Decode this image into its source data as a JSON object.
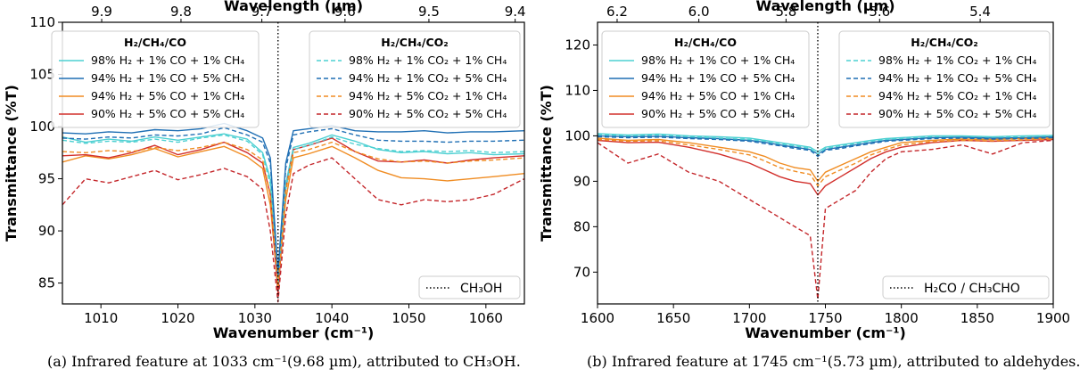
{
  "chart_data": [
    {
      "type": "line",
      "panel": "a",
      "xlabel": "Wavenumber (cm⁻¹)",
      "ylabel": "Transmittance (%T)",
      "x2label": "Wavelength (µm)",
      "xlim": [
        1005,
        1065
      ],
      "ylim": [
        83,
        110
      ],
      "xticks": [
        1010,
        1020,
        1030,
        1040,
        1050,
        1060
      ],
      "yticks": [
        85,
        90,
        95,
        100,
        105,
        110
      ],
      "x2ticks": [
        {
          "label": "9.9",
          "wn": 1010.1
        },
        {
          "label": "9.8",
          "wn": 1020.4
        },
        {
          "label": "9.7",
          "wn": 1030.9
        },
        {
          "label": "9.6",
          "wn": 1041.7
        },
        {
          "label": "9.5",
          "wn": 1052.6
        },
        {
          "label": "9.4",
          "wn": 1063.8
        }
      ],
      "marker": {
        "x": 1033,
        "label": "CH₃OH"
      },
      "legend_co_title": "H₂/CH₄/CO",
      "legend_co2_title": "H₂/CH₄/CO₂",
      "x": [
        1005,
        1008,
        1011,
        1014,
        1017,
        1020,
        1023,
        1026,
        1029,
        1031,
        1032,
        1033,
        1034,
        1035,
        1037,
        1040,
        1043,
        1046,
        1049,
        1052,
        1055,
        1058,
        1061,
        1065
      ],
      "series": [
        {
          "name": "98% H₂ + 1% CO + 1% CH₄",
          "group": "CO",
          "color": "#4dd0d2",
          "dash": "solid",
          "values": [
            99.0,
            98.5,
            98.8,
            98.6,
            99.0,
            98.7,
            99.0,
            99.3,
            98.8,
            97.5,
            95.0,
            85.0,
            94.5,
            98.0,
            98.4,
            99.2,
            98.6,
            97.8,
            97.5,
            97.6,
            97.4,
            97.5,
            97.3,
            97.4
          ]
        },
        {
          "name": "94% H₂ + 1% CO + 5% CH₄",
          "group": "CO",
          "color": "#1f6fb4",
          "dash": "solid",
          "values": [
            99.4,
            99.3,
            99.5,
            99.4,
            99.7,
            99.6,
            99.8,
            100.3,
            99.6,
            98.9,
            97.0,
            86.0,
            96.5,
            99.6,
            99.8,
            100.1,
            99.6,
            99.5,
            99.5,
            99.6,
            99.4,
            99.5,
            99.5,
            99.6
          ]
        },
        {
          "name": "94% H₂ + 5% CO + 1% CH₄",
          "group": "CO",
          "color": "#f08c22",
          "dash": "solid",
          "values": [
            96.6,
            97.2,
            96.9,
            97.3,
            97.9,
            97.1,
            97.6,
            98.1,
            97.1,
            96.0,
            92.5,
            84.5,
            93.0,
            97.0,
            97.4,
            98.1,
            97.0,
            95.8,
            95.1,
            95.0,
            94.8,
            95.0,
            95.2,
            95.5
          ]
        },
        {
          "name": "90% H₂ + 5% CO + 5% CH₄",
          "group": "CO",
          "color": "#d2302c",
          "dash": "solid",
          "values": [
            97.2,
            97.3,
            97.0,
            97.5,
            98.2,
            97.3,
            97.8,
            98.5,
            97.5,
            96.5,
            93.5,
            84.0,
            94.0,
            97.8,
            98.2,
            98.9,
            97.6,
            96.7,
            96.6,
            96.8,
            96.5,
            96.8,
            97.0,
            97.2
          ]
        },
        {
          "name": "98% H₂ + 1% CO₂ + 1% CH₄",
          "group": "CO2",
          "color": "#4dd0d2",
          "dash": "dashed",
          "values": [
            98.7,
            98.4,
            98.6,
            98.5,
            98.8,
            98.5,
            98.9,
            99.2,
            98.6,
            97.3,
            94.5,
            84.8,
            94.0,
            97.8,
            98.2,
            99.0,
            98.3,
            97.9,
            97.6,
            97.7,
            97.6,
            97.7,
            97.5,
            97.6
          ]
        },
        {
          "name": "94% H₂ + 1% CO₂ + 5% CH₄",
          "group": "CO2",
          "color": "#1f6fb4",
          "dash": "dashed",
          "values": [
            98.9,
            98.8,
            99.0,
            98.9,
            99.2,
            99.1,
            99.3,
            99.9,
            99.2,
            98.5,
            96.5,
            85.5,
            96.0,
            99.2,
            99.5,
            99.8,
            99.2,
            98.7,
            98.6,
            98.6,
            98.5,
            98.6,
            98.6,
            98.7
          ]
        },
        {
          "name": "94% H₂ + 5% CO₂ + 1% CH₄",
          "group": "CO2",
          "color": "#f08c22",
          "dash": "dashed",
          "values": [
            97.6,
            97.5,
            97.7,
            97.6,
            98.0,
            97.7,
            98.0,
            98.5,
            97.8,
            96.8,
            93.5,
            84.6,
            93.8,
            97.5,
            97.8,
            98.5,
            97.6,
            96.9,
            96.6,
            96.7,
            96.5,
            96.7,
            96.8,
            97.0
          ]
        },
        {
          "name": "90% H₂ + 5% CO₂ + 5% CH₄",
          "group": "CO2",
          "color": "#c4262a",
          "dash": "dashed",
          "values": [
            92.5,
            95.0,
            94.6,
            95.2,
            95.8,
            94.9,
            95.4,
            96.0,
            95.2,
            94.0,
            90.0,
            83.2,
            91.5,
            95.5,
            96.3,
            97.0,
            95.0,
            93.0,
            92.5,
            93.0,
            92.8,
            93.0,
            93.5,
            95.0
          ]
        }
      ]
    },
    {
      "type": "line",
      "panel": "b",
      "xlabel": "Wavenumber (cm⁻¹)",
      "ylabel": "Transmittance (%T)",
      "x2label": "Wavelength (µm)",
      "xlim": [
        1600,
        1900
      ],
      "ylim": [
        63,
        125
      ],
      "xticks": [
        1600,
        1650,
        1700,
        1750,
        1800,
        1850,
        1900
      ],
      "yticks": [
        70,
        80,
        90,
        100,
        110,
        120
      ],
      "x2ticks": [
        {
          "label": "6.2",
          "wn": 1612.9
        },
        {
          "label": "6.0",
          "wn": 1666.7
        },
        {
          "label": "5.8",
          "wn": 1724.1
        },
        {
          "label": "5.6",
          "wn": 1785.7
        },
        {
          "label": "5.4",
          "wn": 1851.9
        }
      ],
      "marker": {
        "x": 1745,
        "label": "H₂CO / CH₃CHO"
      },
      "legend_co_title": "H₂/CH₄/CO",
      "legend_co2_title": "H₂/CH₄/CO₂",
      "x": [
        1600,
        1620,
        1640,
        1660,
        1680,
        1700,
        1710,
        1720,
        1730,
        1740,
        1745,
        1750,
        1760,
        1770,
        1780,
        1790,
        1800,
        1820,
        1840,
        1860,
        1880,
        1900
      ],
      "series": [
        {
          "name": "98% H₂ + 1% CO + 1% CH₄",
          "group": "CO",
          "color": "#4dd0d2",
          "dash": "solid",
          "values": [
            100.5,
            100.2,
            100.4,
            100.0,
            99.8,
            99.5,
            99.0,
            98.5,
            98.0,
            97.5,
            96.5,
            97.5,
            98.0,
            98.5,
            99.0,
            99.4,
            99.6,
            100.0,
            100.0,
            99.8,
            100.0,
            100.1
          ]
        },
        {
          "name": "94% H₂ + 1% CO + 5% CH₄",
          "group": "CO",
          "color": "#1f6fb4",
          "dash": "solid",
          "values": [
            100.0,
            99.8,
            99.9,
            99.6,
            99.4,
            99.0,
            98.6,
            98.0,
            97.5,
            97.0,
            96.0,
            97.0,
            97.5,
            98.0,
            98.5,
            99.0,
            99.2,
            99.6,
            99.7,
            99.5,
            99.6,
            99.8
          ]
        },
        {
          "name": "94% H₂ + 5% CO + 1% CH₄",
          "group": "CO",
          "color": "#f08c22",
          "dash": "solid",
          "values": [
            99.5,
            99.0,
            99.2,
            98.5,
            97.5,
            96.5,
            95.5,
            94.0,
            93.0,
            92.5,
            90.0,
            92.0,
            93.5,
            95.0,
            96.5,
            97.5,
            98.5,
            99.0,
            99.3,
            99.2,
            99.4,
            99.5
          ]
        },
        {
          "name": "90% H₂ + 5% CO + 5% CH₄",
          "group": "CO",
          "color": "#d2302c",
          "dash": "solid",
          "values": [
            99.0,
            98.5,
            98.6,
            97.5,
            96.0,
            94.0,
            92.5,
            91.0,
            90.0,
            89.5,
            87.0,
            89.0,
            91.0,
            93.0,
            95.0,
            96.5,
            97.5,
            98.5,
            99.0,
            98.8,
            99.0,
            99.2
          ]
        },
        {
          "name": "98% H₂ + 1% CO₂ + 1% CH₄",
          "group": "CO2",
          "color": "#4dd0d2",
          "dash": "dashed",
          "values": [
            100.3,
            100.0,
            100.2,
            99.8,
            99.5,
            99.2,
            98.8,
            98.2,
            97.8,
            97.2,
            96.0,
            97.2,
            97.8,
            98.3,
            98.8,
            99.2,
            99.4,
            99.8,
            99.9,
            99.7,
            99.8,
            100.0
          ]
        },
        {
          "name": "94% H₂ + 1% CO₂ + 5% CH₄",
          "group": "CO2",
          "color": "#1f6fb4",
          "dash": "dashed",
          "values": [
            99.8,
            99.6,
            99.7,
            99.4,
            99.2,
            98.8,
            98.3,
            97.8,
            97.2,
            96.8,
            95.5,
            96.8,
            97.2,
            97.8,
            98.3,
            98.8,
            99.0,
            99.4,
            99.5,
            99.3,
            99.4,
            99.6
          ]
        },
        {
          "name": "94% H₂ + 5% CO₂ + 1% CH₄",
          "group": "CO2",
          "color": "#f08c22",
          "dash": "dashed",
          "values": [
            99.2,
            98.8,
            98.9,
            98.0,
            97.0,
            95.8,
            94.5,
            93.0,
            92.2,
            91.5,
            89.0,
            91.0,
            92.5,
            94.0,
            95.8,
            97.0,
            98.0,
            98.7,
            99.0,
            98.9,
            99.1,
            99.3
          ]
        },
        {
          "name": "90% H₂ + 5% CO₂ + 5% CH₄",
          "group": "CO2",
          "color": "#c4262a",
          "dash": "dashed",
          "values": [
            98.5,
            94.0,
            96.0,
            92.0,
            90.0,
            86.0,
            84.0,
            82.0,
            80.0,
            78.0,
            64.0,
            84.0,
            86.0,
            88.0,
            92.0,
            95.0,
            96.5,
            97.0,
            98.0,
            96.0,
            98.5,
            99.0
          ]
        }
      ]
    }
  ],
  "captions": {
    "a": "(a) Infrared feature at 1033 cm⁻¹(9.68 µm), attributed to CH₃OH.",
    "b": "(b) Infrared feature at 1745 cm⁻¹(5.73 µm), attributed to aldehydes."
  }
}
